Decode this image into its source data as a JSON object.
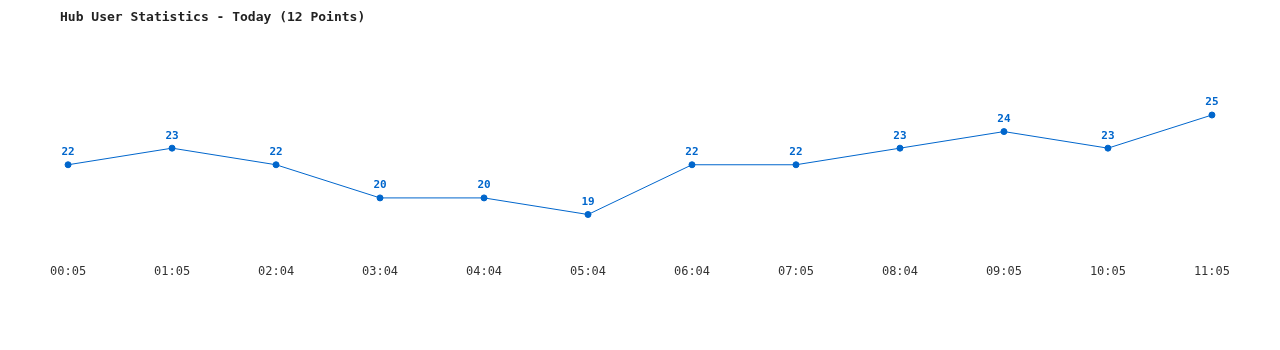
{
  "chart_data": {
    "type": "line",
    "title": "Hub User Statistics - Today (12 Points)",
    "categories": [
      "00:05",
      "01:05",
      "02:04",
      "03:04",
      "04:04",
      "05:04",
      "06:04",
      "07:05",
      "08:04",
      "09:05",
      "10:05",
      "11:05"
    ],
    "series": [
      {
        "color": "#0066cc",
        "values": [
          22,
          23,
          22,
          20,
          20,
          19,
          22,
          22,
          23,
          24,
          23,
          25
        ]
      }
    ],
    "tick_labels": "x",
    "data_labels": true,
    "marker": "circle",
    "line_style": "solid",
    "grid": false,
    "legend": false
  }
}
